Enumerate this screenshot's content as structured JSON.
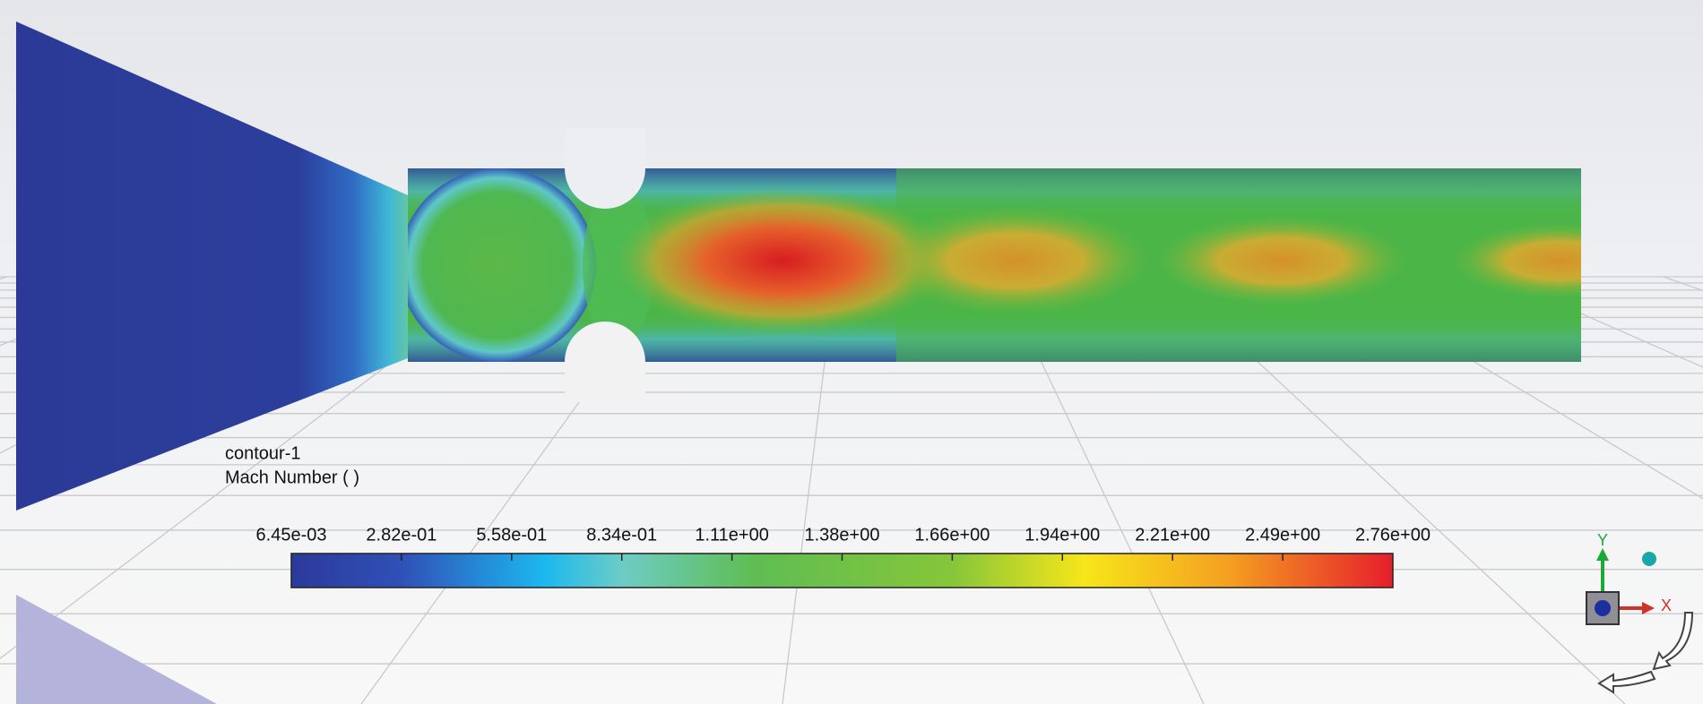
{
  "legend": {
    "title": "contour-1",
    "variable": "Mach Number ( )",
    "ticks": [
      "6.45e-03",
      "2.82e-01",
      "5.58e-01",
      "8.34e-01",
      "1.11e+00",
      "1.38e+00",
      "1.66e+00",
      "1.94e+00",
      "2.21e+00",
      "2.49e+00",
      "2.76e+00"
    ]
  },
  "triad": {
    "y": "Y",
    "x": "X"
  }
}
